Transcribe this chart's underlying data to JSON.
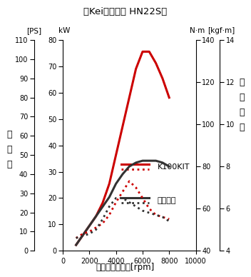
{
  "title": "》Keiスポーツ HN22S「",
  "xlabel": "エンジン回転数[rpm]",
  "ylabel_left_text": "軸\n出\n力",
  "ylabel_right_text": "軸\nト\nル\nク",
  "ps_label": "[PS]",
  "kw_label": "kW",
  "nm_label": "N·m",
  "kgfm_label": "[kgf·m]",
  "title_raw": "【Keiスポーツ HN22S】",
  "xmin": 0,
  "xmax": 10000,
  "xticks": [
    0,
    2000,
    4000,
    6000,
    8000,
    10000
  ],
  "ps_min": 0,
  "ps_max": 110,
  "ps_ticks": [
    0,
    10,
    20,
    30,
    40,
    50,
    60,
    70,
    80,
    90,
    100,
    110
  ],
  "kw_min": 0,
  "kw_max": 80,
  "kw_ticks": [
    0,
    10,
    20,
    30,
    40,
    50,
    60,
    70,
    80
  ],
  "nm_min": 40,
  "nm_max": 140,
  "nm_ticks": [
    40,
    60,
    80,
    100,
    120,
    140
  ],
  "kgfm_min": 4,
  "kgfm_max": 14,
  "kgfm_ticks": [
    4,
    6,
    8,
    10,
    12,
    14
  ],
  "kit_power_rpm": [
    1000,
    1500,
    2000,
    2500,
    3000,
    3500,
    4000,
    4500,
    5000,
    5500,
    6000,
    6250,
    6500,
    7000,
    7500,
    8000
  ],
  "kit_power_ps": [
    3,
    8,
    13,
    18,
    25,
    35,
    50,
    65,
    80,
    95,
    104,
    104,
    104,
    98,
    90,
    80
  ],
  "normal_power_rpm": [
    1000,
    1500,
    2000,
    2500,
    3000,
    3500,
    4000,
    4500,
    5000,
    5500,
    6000,
    6500,
    7000,
    7500,
    8000
  ],
  "normal_power_ps": [
    3,
    8,
    13,
    18,
    23,
    28,
    35,
    40,
    44,
    46,
    47,
    47,
    47,
    46,
    44
  ],
  "kit_torque_rpm": [
    1000,
    1500,
    2000,
    2500,
    3000,
    3500,
    4000,
    4500,
    5000,
    5500,
    6000,
    6500,
    7000,
    7500,
    8000
  ],
  "kit_torque_nm": [
    46,
    48,
    49,
    51,
    53,
    57,
    63,
    68,
    73,
    70,
    65,
    60,
    57,
    56,
    55
  ],
  "normal_torque_rpm": [
    1000,
    1500,
    2000,
    2500,
    3000,
    3500,
    4000,
    4500,
    5000,
    5500,
    6000,
    6500,
    7000,
    7500,
    8000
  ],
  "normal_torque_nm": [
    46,
    47,
    48,
    50,
    55,
    61,
    65,
    65,
    63,
    61,
    59,
    58,
    57,
    56,
    54
  ],
  "color_kit": "#cc0000",
  "color_normal": "#333333",
  "bg_gray": "#cccccc",
  "legend_kit_label": "K100KIT",
  "legend_normal_label": "ノーマル"
}
